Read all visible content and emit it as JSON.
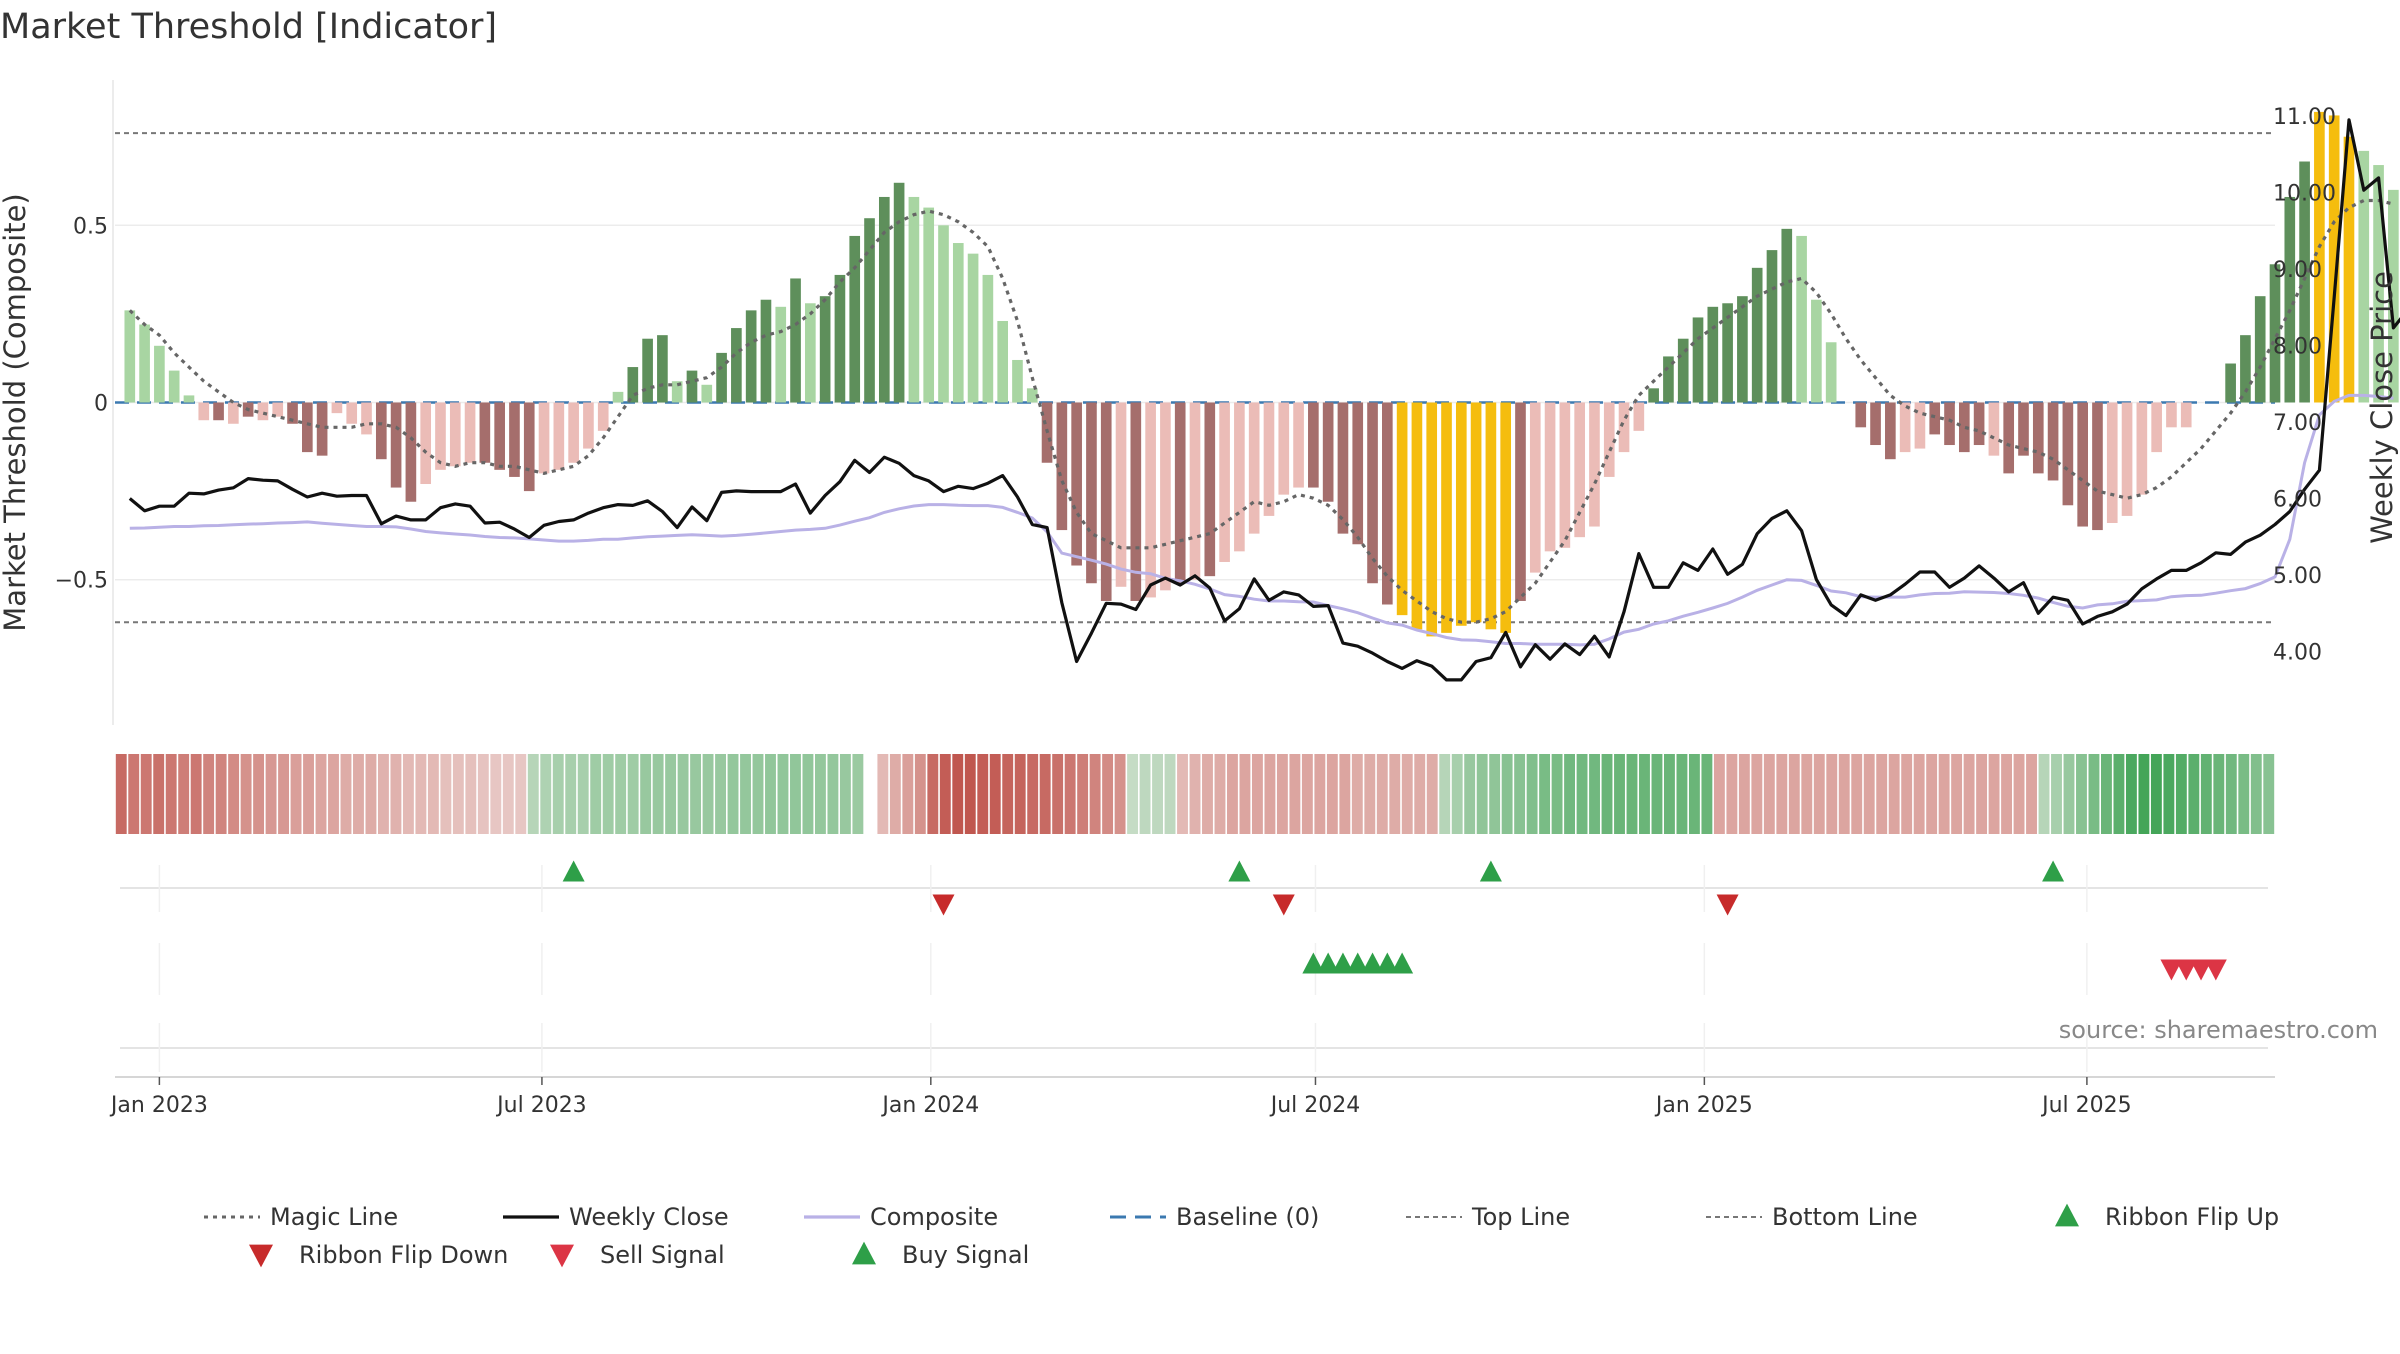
{
  "title": "Market Threshold [Indicator]",
  "source_text": "source: sharemaestro.com",
  "colors": {
    "magic_line": "#666666",
    "weekly_close": "#111111",
    "composite": "#b9b1e6",
    "baseline": "#3b79b0",
    "threshold_line": "#777777",
    "bar_dark_green": "#5e8f5b",
    "bar_light_green": "#a8d5a2",
    "bar_dark_red": "#a56e6c",
    "bar_light_red": "#ebbcb7",
    "bar_extreme": "#f5bd0e",
    "marker_green": "#2e9f48",
    "marker_flip_down": "#c72b2b",
    "marker_sell": "#dc3545"
  },
  "chart_data": {
    "type": "bar",
    "title": "Market Threshold [Indicator]",
    "ylabel_left": "Market Threshold (Composite)",
    "ylabel_right": "Weekly Close Price",
    "ylim_left": [
      -0.91,
      0.91
    ],
    "ylim_right": [
      3.04,
      11.47
    ],
    "xlim": [
      "2022-12-11",
      "2025-09-28"
    ],
    "x_ticks": [
      "Jan 2023",
      "Jul 2023",
      "Jan 2024",
      "Jul 2024",
      "Jan 2025",
      "Jul 2025"
    ],
    "x_tick_dates": [
      "2023-01-01",
      "2023-07-01",
      "2024-01-01",
      "2024-07-01",
      "2025-01-01",
      "2025-07-01"
    ],
    "y_ticks_left": [
      0.5,
      0,
      -0.5
    ],
    "y_tick_labels_left": [
      "0.5",
      "0",
      "−0.5"
    ],
    "y_ticks_right": [
      11.0,
      10.0,
      9.0,
      8.0,
      7.0,
      6.0,
      5.0,
      4.0
    ],
    "y_tick_labels_right": [
      "11.00",
      "10.00",
      "9.00",
      "8.00",
      "7.00",
      "6.00",
      "5.00",
      "4.00"
    ],
    "top_line": 0.76,
    "bottom_line": -0.62,
    "baseline": 0,
    "grid": true,
    "legend_position": "bottom",
    "legend": [
      "Magic Line",
      "Weekly Close",
      "Composite",
      "Baseline (0)",
      "Top Line",
      "Bottom Line",
      "Ribbon Flip Up",
      "Ribbon Flip Down",
      "Sell Signal",
      "Buy Signal"
    ],
    "start_date": "2022-12-18",
    "bar_values": [
      0.26,
      0.22,
      0.16,
      0.09,
      0.02,
      -0.05,
      -0.05,
      -0.06,
      -0.04,
      -0.05,
      -0.04,
      -0.06,
      -0.14,
      -0.15,
      -0.03,
      -0.06,
      -0.09,
      -0.16,
      -0.24,
      -0.28,
      -0.23,
      -0.19,
      -0.18,
      -0.17,
      -0.17,
      -0.19,
      -0.21,
      -0.25,
      -0.2,
      -0.19,
      -0.17,
      -0.13,
      -0.08,
      0.03,
      0.1,
      0.18,
      0.19,
      0.06,
      0.09,
      0.05,
      0.14,
      0.21,
      0.26,
      0.29,
      0.27,
      0.35,
      0.28,
      0.3,
      0.36,
      0.47,
      0.52,
      0.58,
      0.62,
      0.58,
      0.55,
      0.5,
      0.45,
      0.42,
      0.36,
      0.23,
      0.12,
      0.04,
      -0.17,
      -0.36,
      -0.46,
      -0.51,
      -0.56,
      -0.52,
      -0.56,
      -0.55,
      -0.53,
      -0.51,
      -0.5,
      -0.49,
      -0.45,
      -0.42,
      -0.37,
      -0.32,
      -0.26,
      -0.24,
      -0.24,
      -0.28,
      -0.37,
      -0.4,
      -0.51,
      -0.57,
      -0.6,
      -0.64,
      -0.66,
      -0.65,
      -0.63,
      -0.62,
      -0.64,
      -0.65,
      -0.56,
      -0.48,
      -0.42,
      -0.41,
      -0.38,
      -0.35,
      -0.21,
      -0.14,
      -0.08,
      0.04,
      0.13,
      0.18,
      0.24,
      0.27,
      0.28,
      0.3,
      0.38,
      0.43,
      0.49,
      0.47,
      0.29,
      0.17,
      0.0,
      -0.07,
      -0.12,
      -0.16,
      -0.14,
      -0.13,
      -0.09,
      -0.12,
      -0.14,
      -0.12,
      -0.15,
      -0.2,
      -0.15,
      -0.2,
      -0.22,
      -0.29,
      -0.35,
      -0.36,
      -0.34,
      -0.32,
      -0.26,
      -0.14,
      -0.07,
      -0.07,
      0.0,
      0.0,
      0.11,
      0.19,
      0.3,
      0.39,
      0.58,
      0.68,
      0.82,
      0.81,
      0.75,
      0.71,
      0.67,
      0.6
    ],
    "bar_classes": [
      "lg",
      "lg",
      "lg",
      "lg",
      "lg",
      "lr",
      "dr",
      "lr",
      "dr",
      "lr",
      "lr",
      "dr",
      "dr",
      "dr",
      "lr",
      "lr",
      "lr",
      "dr",
      "dr",
      "dr",
      "lr",
      "lr",
      "lr",
      "lr",
      "dr",
      "dr",
      "dr",
      "dr",
      "lr",
      "lr",
      "lr",
      "lr",
      "lr",
      "lg",
      "dg",
      "dg",
      "dg",
      "lg",
      "dg",
      "lg",
      "dg",
      "dg",
      "dg",
      "dg",
      "lg",
      "dg",
      "lg",
      "dg",
      "dg",
      "dg",
      "dg",
      "dg",
      "dg",
      "lg",
      "lg",
      "lg",
      "lg",
      "lg",
      "lg",
      "lg",
      "lg",
      "lg",
      "dr",
      "dr",
      "dr",
      "dr",
      "dr",
      "lr",
      "dr",
      "lr",
      "lr",
      "dr",
      "lr",
      "dr",
      "lr",
      "lr",
      "lr",
      "lr",
      "lr",
      "lr",
      "dr",
      "dr",
      "dr",
      "dr",
      "dr",
      "dr",
      "ex",
      "ex",
      "ex",
      "ex",
      "ex",
      "ex",
      "ex",
      "ex",
      "dr",
      "lr",
      "lr",
      "lr",
      "lr",
      "lr",
      "lr",
      "lr",
      "lr",
      "dg",
      "dg",
      "dg",
      "dg",
      "dg",
      "dg",
      "dg",
      "dg",
      "dg",
      "dg",
      "lg",
      "lg",
      "lg",
      "lr",
      "dr",
      "dr",
      "dr",
      "lr",
      "lr",
      "dr",
      "dr",
      "dr",
      "dr",
      "lr",
      "dr",
      "dr",
      "dr",
      "dr",
      "dr",
      "dr",
      "dr",
      "lr",
      "lr",
      "lr",
      "lr",
      "lr",
      "lr",
      "lr",
      "lr",
      "dg",
      "dg",
      "dg",
      "dg",
      "dg",
      "dg",
      "ex",
      "ex",
      "ex",
      "lg",
      "lg",
      "lg"
    ],
    "magic_line": [
      0.26,
      0.22,
      0.19,
      0.14,
      0.1,
      0.06,
      0.03,
      0.0,
      -0.02,
      -0.03,
      -0.04,
      -0.05,
      -0.06,
      -0.07,
      -0.07,
      -0.07,
      -0.06,
      -0.06,
      -0.07,
      -0.1,
      -0.14,
      -0.17,
      -0.18,
      -0.17,
      -0.17,
      -0.18,
      -0.18,
      -0.19,
      -0.2,
      -0.19,
      -0.18,
      -0.15,
      -0.1,
      -0.04,
      0.02,
      0.04,
      0.05,
      0.05,
      0.06,
      0.07,
      0.1,
      0.14,
      0.17,
      0.19,
      0.2,
      0.22,
      0.25,
      0.29,
      0.34,
      0.38,
      0.43,
      0.48,
      0.51,
      0.53,
      0.54,
      0.53,
      0.51,
      0.48,
      0.44,
      0.35,
      0.23,
      0.07,
      -0.08,
      -0.22,
      -0.31,
      -0.37,
      -0.39,
      -0.41,
      -0.41,
      -0.41,
      -0.4,
      -0.39,
      -0.38,
      -0.37,
      -0.34,
      -0.31,
      -0.28,
      -0.29,
      -0.28,
      -0.26,
      -0.27,
      -0.29,
      -0.33,
      -0.38,
      -0.44,
      -0.49,
      -0.53,
      -0.56,
      -0.59,
      -0.61,
      -0.62,
      -0.62,
      -0.61,
      -0.59,
      -0.55,
      -0.51,
      -0.45,
      -0.39,
      -0.31,
      -0.23,
      -0.14,
      -0.05,
      0.02,
      0.06,
      0.1,
      0.14,
      0.18,
      0.21,
      0.24,
      0.27,
      0.3,
      0.32,
      0.34,
      0.35,
      0.31,
      0.25,
      0.18,
      0.12,
      0.07,
      0.02,
      -0.01,
      -0.03,
      -0.04,
      -0.05,
      -0.07,
      -0.08,
      -0.1,
      -0.12,
      -0.13,
      -0.14,
      -0.16,
      -0.19,
      -0.22,
      -0.25,
      -0.26,
      -0.27,
      -0.26,
      -0.24,
      -0.21,
      -0.17,
      -0.13,
      -0.08,
      -0.03,
      0.03,
      0.1,
      0.18,
      0.26,
      0.35,
      0.44,
      0.51,
      0.55,
      0.57,
      0.57,
      0.56
    ],
    "composite": [
      -0.355,
      -0.354,
      -0.352,
      -0.35,
      -0.35,
      -0.348,
      -0.347,
      -0.345,
      -0.343,
      -0.342,
      -0.34,
      -0.339,
      -0.337,
      -0.341,
      -0.344,
      -0.347,
      -0.35,
      -0.35,
      -0.351,
      -0.357,
      -0.364,
      -0.368,
      -0.371,
      -0.374,
      -0.378,
      -0.381,
      -0.382,
      -0.385,
      -0.388,
      -0.391,
      -0.391,
      -0.389,
      -0.386,
      -0.386,
      -0.382,
      -0.379,
      -0.377,
      -0.375,
      -0.373,
      -0.375,
      -0.377,
      -0.375,
      -0.372,
      -0.368,
      -0.364,
      -0.36,
      -0.358,
      -0.355,
      -0.346,
      -0.335,
      -0.325,
      -0.31,
      -0.3,
      -0.292,
      -0.288,
      -0.288,
      -0.29,
      -0.291,
      -0.291,
      -0.296,
      -0.31,
      -0.326,
      -0.365,
      -0.425,
      -0.435,
      -0.445,
      -0.456,
      -0.47,
      -0.479,
      -0.483,
      -0.496,
      -0.503,
      -0.513,
      -0.526,
      -0.542,
      -0.547,
      -0.555,
      -0.56,
      -0.56,
      -0.562,
      -0.563,
      -0.573,
      -0.582,
      -0.593,
      -0.608,
      -0.622,
      -0.628,
      -0.642,
      -0.652,
      -0.663,
      -0.67,
      -0.671,
      -0.675,
      -0.68,
      -0.68,
      -0.682,
      -0.682,
      -0.682,
      -0.684,
      -0.682,
      -0.667,
      -0.648,
      -0.64,
      -0.625,
      -0.616,
      -0.603,
      -0.592,
      -0.58,
      -0.567,
      -0.549,
      -0.53,
      -0.515,
      -0.5,
      -0.502,
      -0.516,
      -0.532,
      -0.537,
      -0.548,
      -0.549,
      -0.549,
      -0.549,
      -0.543,
      -0.539,
      -0.538,
      -0.534,
      -0.535,
      -0.536,
      -0.539,
      -0.544,
      -0.552,
      -0.564,
      -0.575,
      -0.58,
      -0.571,
      -0.568,
      -0.561,
      -0.559,
      -0.557,
      -0.548,
      -0.545,
      -0.544,
      -0.538,
      -0.531,
      -0.525,
      -0.511,
      -0.492,
      -0.386,
      -0.17,
      -0.035,
      0.003,
      0.02,
      0.02,
      0.017,
      0.012
    ],
    "weekly_close": [
      6.0,
      5.84,
      5.9,
      5.9,
      6.07,
      6.06,
      6.11,
      6.14,
      6.26,
      6.24,
      6.23,
      6.12,
      6.02,
      6.07,
      6.03,
      6.04,
      6.04,
      5.67,
      5.77,
      5.72,
      5.72,
      5.88,
      5.93,
      5.9,
      5.68,
      5.69,
      5.6,
      5.49,
      5.65,
      5.7,
      5.72,
      5.81,
      5.88,
      5.92,
      5.91,
      5.97,
      5.83,
      5.62,
      5.89,
      5.71,
      6.08,
      6.1,
      6.09,
      6.09,
      6.09,
      6.19,
      5.81,
      6.04,
      6.22,
      6.5,
      6.34,
      6.54,
      6.46,
      6.3,
      6.23,
      6.09,
      6.16,
      6.13,
      6.2,
      6.3,
      6.02,
      5.66,
      5.62,
      4.64,
      3.87,
      4.24,
      4.63,
      4.62,
      4.55,
      4.87,
      4.96,
      4.87,
      4.99,
      4.83,
      4.4,
      4.56,
      4.95,
      4.67,
      4.78,
      4.74,
      4.59,
      4.6,
      4.11,
      4.07,
      3.98,
      3.87,
      3.78,
      3.88,
      3.81,
      3.63,
      3.63,
      3.87,
      3.92,
      4.25,
      3.8,
      4.09,
      3.9,
      4.1,
      3.96,
      4.2,
      3.93,
      4.52,
      5.28,
      4.84,
      4.84,
      5.16,
      5.06,
      5.34,
      5.01,
      5.14,
      5.54,
      5.74,
      5.84,
      5.58,
      4.94,
      4.61,
      4.47,
      4.74,
      4.67,
      4.74,
      4.88,
      5.04,
      5.04,
      4.84,
      4.96,
      5.12,
      4.96,
      4.78,
      4.9,
      4.5,
      4.71,
      4.67,
      4.36,
      4.46,
      4.52,
      4.62,
      4.82,
      4.95,
      5.06,
      5.06,
      5.16,
      5.29,
      5.27,
      5.43,
      5.52,
      5.66,
      5.83,
      6.12,
      6.37,
      8.63,
      10.95,
      10.03,
      10.19,
      8.23,
      8.47,
      8.18,
      7.96
    ],
    "ribbon_strength": [
      -0.8,
      -0.7,
      -0.7,
      -0.75,
      -0.7,
      -0.65,
      -0.7,
      -0.6,
      -0.6,
      -0.55,
      -0.5,
      -0.5,
      -0.45,
      -0.45,
      -0.4,
      -0.4,
      -0.35,
      -0.35,
      -0.3,
      -0.3,
      -0.3,
      -0.25,
      -0.25,
      -0.2,
      -0.2,
      -0.2,
      -0.15,
      -0.15,
      -0.15,
      -0.12,
      -0.1,
      -0.1,
      -0.1,
      0.2,
      0.25,
      0.3,
      0.3,
      0.3,
      0.35,
      0.35,
      0.35,
      0.35,
      0.4,
      0.4,
      0.4,
      0.4,
      0.4,
      0.4,
      0.4,
      0.42,
      0.42,
      0.42,
      0.44,
      0.44,
      0.44,
      0.44,
      0.42,
      0.42,
      0.4,
      0.38,
      -0.15,
      -0.2,
      -0.3,
      -0.4,
      -0.5,
      -0.8,
      -0.9,
      -0.95,
      -0.95,
      -0.9,
      -0.9,
      -0.85,
      -0.85,
      -0.8,
      -0.8,
      -0.75,
      -0.7,
      -0.65,
      -0.6,
      -0.55,
      -0.5,
      0.1,
      0.15,
      0.15,
      0.15,
      -0.2,
      -0.25,
      -0.3,
      -0.3,
      -0.35,
      -0.35,
      -0.35,
      -0.35,
      -0.35,
      -0.35,
      -0.35,
      -0.35,
      -0.35,
      -0.35,
      -0.3,
      -0.3,
      -0.3,
      -0.3,
      -0.3,
      -0.3,
      -0.3,
      0.2,
      0.3,
      0.4,
      0.45,
      0.45,
      0.5,
      0.5,
      0.55,
      0.6,
      0.6,
      0.65,
      0.65,
      0.65,
      0.7,
      0.7,
      0.7,
      0.7,
      0.7,
      0.7,
      0.7,
      0.7,
      0.7,
      -0.35,
      -0.35,
      -0.35,
      -0.35,
      -0.35,
      -0.35,
      -0.35,
      -0.35,
      -0.35,
      -0.35,
      -0.35,
      -0.35,
      -0.35,
      -0.35,
      -0.35,
      -0.35,
      -0.35,
      -0.35,
      -0.35,
      -0.35,
      -0.35,
      -0.35,
      -0.35,
      -0.35,
      -0.35,
      -0.35,
      0.2,
      0.3,
      0.4,
      0.5,
      0.6,
      0.7,
      0.8,
      0.9,
      0.95,
      0.95,
      0.9,
      0.85,
      0.8,
      0.75,
      0.7,
      0.65,
      0.6,
      0.55,
      0.5
    ],
    "ribbon_gap_index": 60,
    "ribbon_flip_up_dates": [
      "2023-07-16",
      "2024-05-26",
      "2024-09-22",
      "2025-06-15"
    ],
    "ribbon_flip_down_dates": [
      "2024-01-07",
      "2024-06-16",
      "2025-01-12"
    ],
    "buy_signal_dates": [
      "2024-06-30",
      "2024-07-07",
      "2024-07-14",
      "2024-07-21",
      "2024-07-28",
      "2024-08-04",
      "2024-08-11"
    ],
    "sell_signal_dates": [
      "2025-08-10",
      "2025-08-17",
      "2025-08-24",
      "2025-08-31"
    ]
  }
}
